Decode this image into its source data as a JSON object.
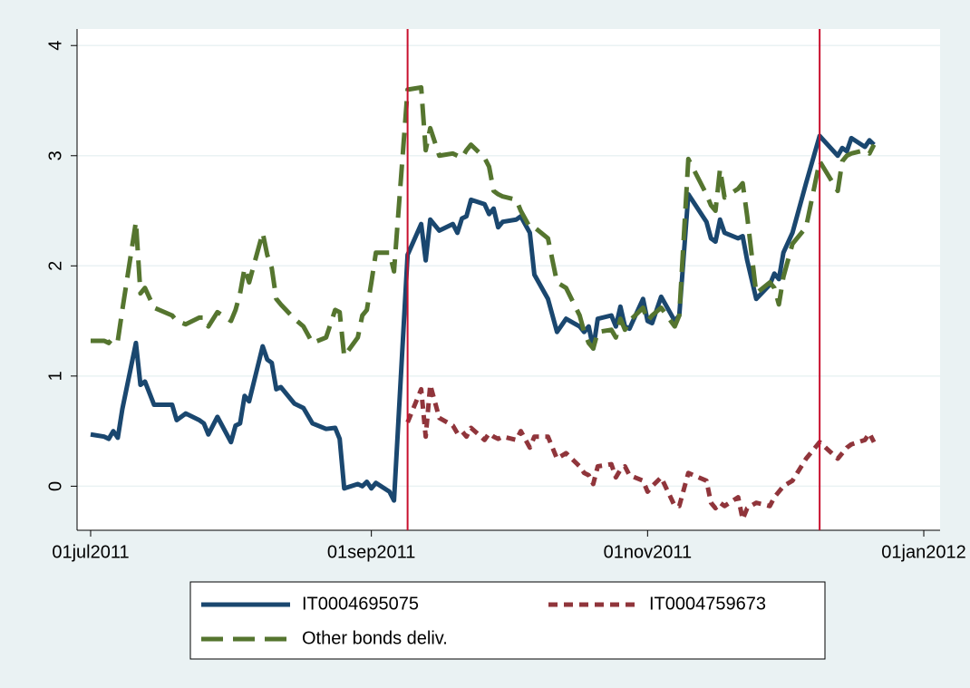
{
  "chart_data": {
    "type": "line",
    "x": [
      "2011-07-01",
      "2011-07-04",
      "2011-07-05",
      "2011-07-06",
      "2011-07-07",
      "2011-07-08",
      "2011-07-11",
      "2011-07-12",
      "2011-07-13",
      "2011-07-15",
      "2011-07-19",
      "2011-07-20",
      "2011-07-22",
      "2011-07-25",
      "2011-07-26",
      "2011-07-27",
      "2011-07-29",
      "2011-08-01",
      "2011-08-02",
      "2011-08-03",
      "2011-08-04",
      "2011-08-05",
      "2011-08-08",
      "2011-08-09",
      "2011-08-10",
      "2011-08-11",
      "2011-08-12",
      "2011-08-15",
      "2011-08-17",
      "2011-08-19",
      "2011-08-22",
      "2011-08-24",
      "2011-08-25",
      "2011-08-26",
      "2011-08-29",
      "2011-08-30",
      "2011-08-31",
      "2011-09-01",
      "2011-09-02",
      "2011-09-05",
      "2011-09-06",
      "2011-09-09",
      "2011-09-12",
      "2011-09-13",
      "2011-09-14",
      "2011-09-16",
      "2011-09-19",
      "2011-09-20",
      "2011-09-21",
      "2011-09-22",
      "2011-09-23",
      "2011-09-26",
      "2011-09-27",
      "2011-09-28",
      "2011-09-29",
      "2011-09-30",
      "2011-10-03",
      "2011-10-04",
      "2011-10-06",
      "2011-10-07",
      "2011-10-10",
      "2011-10-12",
      "2011-10-14",
      "2011-10-17",
      "2011-10-18",
      "2011-10-19",
      "2011-10-20",
      "2011-10-21",
      "2011-10-24",
      "2011-10-25",
      "2011-10-26",
      "2011-10-27",
      "2011-10-28",
      "2011-10-31",
      "2011-11-01",
      "2011-11-02",
      "2011-11-04",
      "2011-11-07",
      "2011-11-08",
      "2011-11-10",
      "2011-11-14",
      "2011-11-15",
      "2011-11-16",
      "2011-11-17",
      "2011-11-18",
      "2011-11-21",
      "2011-11-22",
      "2011-11-23",
      "2011-11-25",
      "2011-11-28",
      "2011-11-29",
      "2011-11-30",
      "2011-12-01",
      "2011-12-03",
      "2011-12-06",
      "2011-12-09",
      "2011-12-13",
      "2011-12-14",
      "2011-12-15",
      "2011-12-16",
      "2011-12-19",
      "2011-12-20",
      "2011-12-21"
    ],
    "series": [
      {
        "name": "IT0004695075",
        "color": "#1a476f",
        "dash": "solid",
        "values": [
          0.47,
          0.45,
          0.43,
          0.5,
          0.44,
          0.7,
          1.3,
          0.92,
          0.95,
          0.74,
          0.74,
          0.6,
          0.66,
          0.6,
          0.57,
          0.47,
          0.63,
          0.4,
          0.55,
          0.57,
          0.82,
          0.77,
          1.27,
          1.15,
          1.12,
          0.88,
          0.9,
          0.75,
          0.71,
          0.57,
          0.52,
          0.53,
          0.43,
          -0.02,
          0.02,
          0.0,
          0.04,
          -0.02,
          0.03,
          -0.05,
          -0.13,
          2.1,
          2.38,
          2.05,
          2.42,
          2.32,
          2.38,
          2.3,
          2.43,
          2.45,
          2.6,
          2.56,
          2.47,
          2.52,
          2.35,
          2.4,
          2.42,
          2.45,
          2.3,
          1.92,
          1.7,
          1.4,
          1.52,
          1.45,
          1.4,
          1.45,
          1.25,
          1.52,
          1.55,
          1.45,
          1.63,
          1.45,
          1.43,
          1.7,
          1.5,
          1.48,
          1.72,
          1.5,
          1.55,
          2.65,
          2.4,
          2.25,
          2.22,
          2.42,
          2.3,
          2.25,
          2.27,
          2.05,
          1.7,
          1.83,
          1.93,
          1.88,
          2.12,
          2.3,
          2.75,
          3.18,
          3.0,
          3.07,
          3.04,
          3.16,
          3.08,
          3.14,
          3.1
        ]
      },
      {
        "name": "IT0004759673",
        "color": "#90353b",
        "dash": "short",
        "values": [
          null,
          null,
          null,
          null,
          null,
          null,
          null,
          null,
          null,
          null,
          null,
          null,
          null,
          null,
          null,
          null,
          null,
          null,
          null,
          null,
          null,
          null,
          null,
          null,
          null,
          null,
          null,
          null,
          null,
          null,
          null,
          null,
          null,
          null,
          null,
          null,
          null,
          null,
          null,
          null,
          null,
          0.58,
          0.88,
          0.45,
          0.92,
          0.62,
          0.55,
          0.48,
          0.5,
          0.45,
          0.53,
          0.42,
          0.48,
          0.45,
          0.43,
          0.45,
          0.42,
          0.5,
          0.35,
          0.45,
          0.45,
          0.25,
          0.3,
          0.18,
          0.12,
          0.1,
          0.02,
          0.18,
          0.2,
          0.08,
          0.15,
          0.18,
          0.1,
          0.05,
          -0.05,
          0.0,
          0.08,
          -0.18,
          -0.18,
          0.12,
          0.05,
          -0.15,
          -0.2,
          -0.15,
          -0.18,
          -0.1,
          -0.3,
          -0.2,
          -0.15,
          -0.18,
          -0.1,
          -0.05,
          0.0,
          0.05,
          0.25,
          0.4,
          0.25,
          0.3,
          0.35,
          0.38,
          0.42,
          0.48,
          0.4
        ]
      },
      {
        "name": "Other bonds deliv.",
        "color": "#55752f",
        "dash": "long",
        "values": [
          1.32,
          1.32,
          1.3,
          1.35,
          1.32,
          1.6,
          2.4,
          1.75,
          1.8,
          1.62,
          1.55,
          1.5,
          1.47,
          1.53,
          1.53,
          1.45,
          1.58,
          1.5,
          1.6,
          1.75,
          1.98,
          1.85,
          2.3,
          2.1,
          1.98,
          1.7,
          1.65,
          1.52,
          1.45,
          1.3,
          1.35,
          1.6,
          1.58,
          1.18,
          1.35,
          1.55,
          1.6,
          1.85,
          2.12,
          2.12,
          1.95,
          3.6,
          3.62,
          3.05,
          3.25,
          3.0,
          3.02,
          3.0,
          2.98,
          3.05,
          3.1,
          2.98,
          2.9,
          2.68,
          2.65,
          2.63,
          2.6,
          2.5,
          2.35,
          2.35,
          2.25,
          1.85,
          1.8,
          1.55,
          1.4,
          1.3,
          1.25,
          1.4,
          1.42,
          1.35,
          1.52,
          1.42,
          1.5,
          1.62,
          1.5,
          1.55,
          1.62,
          1.45,
          1.55,
          2.97,
          2.65,
          2.55,
          2.5,
          2.88,
          2.62,
          2.7,
          2.75,
          2.45,
          1.75,
          1.85,
          1.8,
          1.65,
          1.9,
          2.2,
          2.35,
          2.95,
          2.68,
          2.95,
          3.0,
          3.02,
          3.05,
          3.02,
          3.1
        ]
      }
    ],
    "xlim": [
      "2011-06-28",
      "2012-01-04"
    ],
    "xticks": [
      {
        "value": "2011-07-01",
        "label": "01jul2011"
      },
      {
        "value": "2011-09-01",
        "label": "01sep2011"
      },
      {
        "value": "2011-11-01",
        "label": "01nov2011"
      },
      {
        "value": "2012-01-01",
        "label": "01jan2012"
      }
    ],
    "ylim": [
      -0.4,
      4.15
    ],
    "yticks": [
      0,
      1,
      2,
      3,
      4
    ],
    "grid": true,
    "xlines": [
      "2011-09-09",
      "2011-12-09"
    ],
    "xline_color": "#c8102e",
    "legend": "bottom"
  }
}
